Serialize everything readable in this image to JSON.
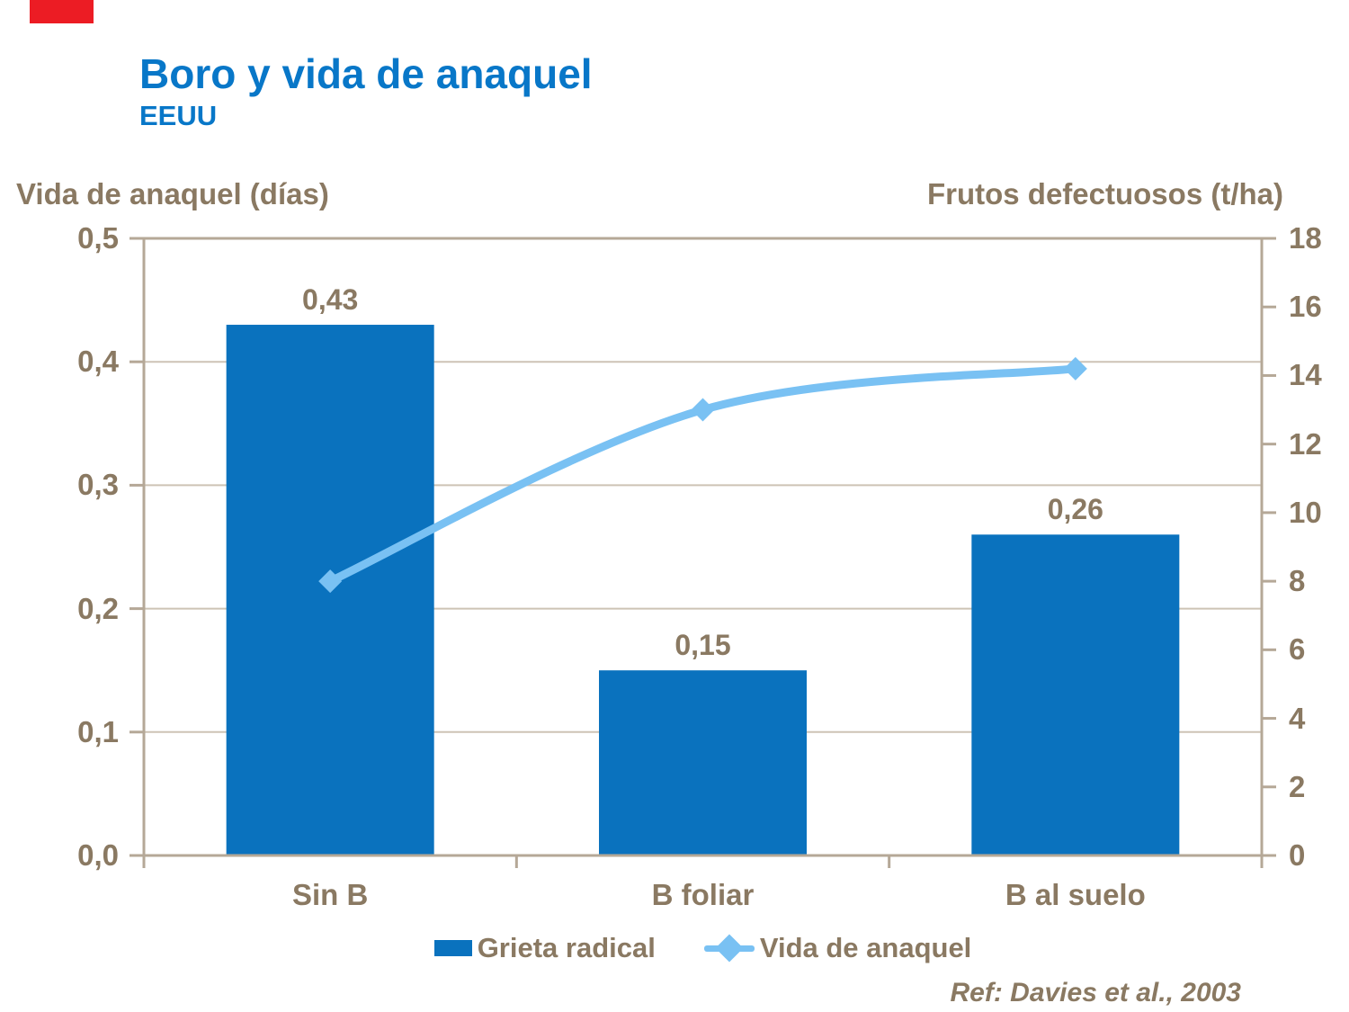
{
  "header": {
    "title": "Boro y vida de anaquel",
    "subtitle": "EEUU"
  },
  "footer": {
    "reference": "Ref: Davies et al., 2003"
  },
  "colors": {
    "title_blue": "#0877C8",
    "bar_blue": "#0A72BE",
    "line_light_blue": "#79C1F3",
    "text_brown": "#8A7962",
    "plot_border_tan": "#B5A897",
    "gridline_tan": "#CDC3B5",
    "accent_red": "#EC1C24"
  },
  "chart_data": {
    "type": "bar",
    "subtype": "bar-line combo, dual axis",
    "categories": [
      "Sin B",
      "B foliar",
      "B al suelo"
    ],
    "series": [
      {
        "name": "Grieta radical",
        "type": "bar",
        "axis": "left",
        "values": [
          0.43,
          0.15,
          0.26
        ],
        "value_labels": [
          "0,43",
          "0,15",
          "0,26"
        ],
        "color": "#0A72BE"
      },
      {
        "name": "Vida de anaquel",
        "type": "line",
        "axis": "right",
        "marker": "diamond",
        "smooth": true,
        "values": [
          8,
          13,
          14.2
        ],
        "color": "#79C1F3"
      }
    ],
    "left_axis": {
      "title": "Vida de anaquel (días)",
      "min": 0,
      "max": 0.5,
      "step": 0.1,
      "tick_labels": [
        "0,0",
        "0,1",
        "0,2",
        "0,3",
        "0,4",
        "0,5"
      ]
    },
    "right_axis": {
      "title": "Frutos defectuosos (t/ha)",
      "min": 0,
      "max": 18,
      "step": 2,
      "tick_labels": [
        "0",
        "2",
        "4",
        "6",
        "8",
        "10",
        "12",
        "14",
        "16",
        "18"
      ]
    },
    "grid": "horizontal lines at left-axis 0.1 steps",
    "legend_position": "bottom"
  }
}
